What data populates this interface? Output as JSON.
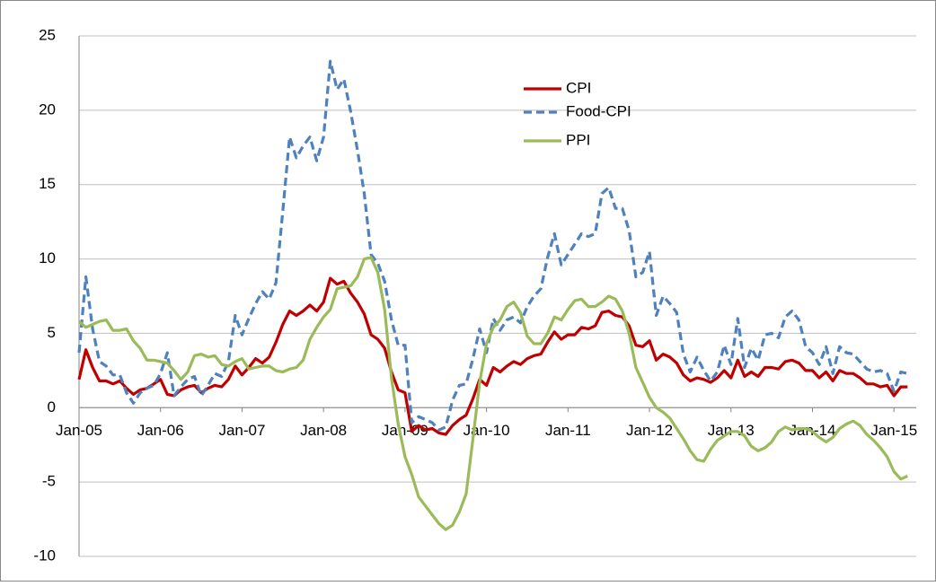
{
  "chart_data": {
    "type": "line",
    "categories": [
      "Jan-05",
      null,
      null,
      null,
      null,
      null,
      null,
      null,
      null,
      null,
      null,
      null,
      "Jan-06",
      null,
      null,
      null,
      null,
      null,
      null,
      null,
      null,
      null,
      null,
      null,
      "Jan-07",
      null,
      null,
      null,
      null,
      null,
      null,
      null,
      null,
      null,
      null,
      null,
      "Jan-08",
      null,
      null,
      null,
      null,
      null,
      null,
      null,
      null,
      null,
      null,
      null,
      "Jan-09",
      null,
      null,
      null,
      null,
      null,
      null,
      null,
      null,
      null,
      null,
      null,
      "Jan-10",
      null,
      null,
      null,
      null,
      null,
      null,
      null,
      null,
      null,
      null,
      null,
      "Jan-11",
      null,
      null,
      null,
      null,
      null,
      null,
      null,
      null,
      null,
      null,
      null,
      "Jan-12",
      null,
      null,
      null,
      null,
      null,
      null,
      null,
      null,
      null,
      null,
      null,
      "Jan-13",
      null,
      null,
      null,
      null,
      null,
      null,
      null,
      null,
      null,
      null,
      null,
      "Jan-14",
      null,
      null,
      null,
      null,
      null,
      null,
      null,
      null,
      null,
      null,
      null,
      "Jan-15",
      null,
      null
    ],
    "series": [
      {
        "name": "CPI",
        "color": "#c00000",
        "dash": false,
        "values": [
          1.9,
          3.9,
          2.7,
          1.8,
          1.8,
          1.6,
          1.8,
          1.3,
          0.9,
          1.2,
          1.3,
          1.6,
          1.9,
          0.9,
          0.8,
          1.2,
          1.4,
          1.5,
          1.0,
          1.3,
          1.5,
          1.4,
          1.9,
          2.8,
          2.2,
          2.7,
          3.3,
          3.0,
          3.4,
          4.4,
          5.6,
          6.5,
          6.2,
          6.5,
          6.9,
          6.5,
          7.1,
          8.7,
          8.3,
          8.5,
          7.7,
          7.1,
          6.3,
          4.9,
          4.6,
          4.0,
          2.4,
          1.2,
          1.0,
          -1.6,
          -1.2,
          -1.5,
          -1.4,
          -1.7,
          -1.8,
          -1.2,
          -0.8,
          -0.5,
          0.6,
          1.9,
          1.5,
          2.7,
          2.4,
          2.8,
          3.1,
          2.9,
          3.3,
          3.5,
          3.6,
          4.4,
          5.1,
          4.6,
          4.9,
          4.9,
          5.4,
          5.3,
          5.5,
          6.4,
          6.5,
          6.2,
          6.1,
          5.5,
          4.2,
          4.1,
          4.5,
          3.2,
          3.6,
          3.4,
          3.0,
          2.2,
          1.8,
          2.0,
          1.9,
          1.7,
          2.0,
          2.5,
          2.0,
          3.2,
          2.1,
          2.4,
          2.1,
          2.7,
          2.7,
          2.6,
          3.1,
          3.2,
          3.0,
          2.5,
          2.5,
          2.0,
          2.4,
          1.8,
          2.5,
          2.3,
          2.3,
          2.0,
          1.6,
          1.6,
          1.4,
          1.5,
          0.8,
          1.4,
          1.4
        ]
      },
      {
        "name": "Food-CPI",
        "color": "#4f81bd",
        "dash": true,
        "values": [
          3.7,
          8.8,
          5.3,
          3.1,
          2.8,
          2.2,
          2.2,
          1.0,
          0.3,
          1.0,
          1.3,
          1.5,
          2.3,
          3.7,
          0.8,
          1.4,
          1.9,
          2.1,
          0.8,
          1.5,
          2.3,
          2.1,
          3.1,
          6.2,
          4.9,
          6.0,
          7.0,
          7.8,
          7.3,
          8.4,
          13.2,
          18.2,
          16.8,
          17.6,
          18.2,
          16.6,
          18.2,
          23.3,
          21.4,
          22.1,
          19.9,
          17.3,
          14.4,
          10.3,
          9.7,
          8.5,
          5.9,
          4.2,
          4.2,
          -1.0,
          -0.6,
          -0.8,
          -1.0,
          -1.5,
          -1.3,
          0.5,
          1.5,
          1.6,
          3.3,
          5.3,
          3.7,
          6.0,
          5.2,
          5.9,
          6.1,
          5.7,
          6.8,
          7.5,
          8.0,
          10.1,
          11.7,
          9.6,
          10.3,
          11.0,
          11.7,
          11.5,
          11.7,
          14.4,
          14.8,
          13.4,
          13.4,
          11.9,
          8.8,
          9.1,
          10.5,
          6.2,
          7.5,
          7.0,
          6.4,
          3.6,
          2.4,
          3.4,
          2.5,
          1.8,
          2.4,
          4.2,
          2.9,
          6.0,
          2.7,
          4.0,
          3.2,
          4.9,
          5.0,
          4.7,
          6.1,
          6.5,
          5.9,
          4.1,
          3.7,
          2.9,
          4.1,
          2.3,
          4.1,
          3.7,
          3.6,
          3.1,
          2.6,
          2.4,
          2.5,
          2.3,
          1.1,
          2.4,
          2.3
        ]
      },
      {
        "name": "PPI",
        "color": "#9bbb59",
        "dash": false,
        "values": [
          5.8,
          5.4,
          5.6,
          5.8,
          5.9,
          5.2,
          5.2,
          5.3,
          4.5,
          4.0,
          3.2,
          3.2,
          3.1,
          3.0,
          2.5,
          1.9,
          2.4,
          3.5,
          3.6,
          3.4,
          3.5,
          2.9,
          2.8,
          3.1,
          3.3,
          2.6,
          2.7,
          2.8,
          2.8,
          2.5,
          2.4,
          2.6,
          2.7,
          3.2,
          4.6,
          5.4,
          6.1,
          6.6,
          8.0,
          8.1,
          8.2,
          8.8,
          10.0,
          10.1,
          9.1,
          6.6,
          2.0,
          -1.1,
          -3.3,
          -4.5,
          -6.0,
          -6.6,
          -7.2,
          -7.8,
          -8.2,
          -7.9,
          -7.0,
          -5.8,
          -2.1,
          1.7,
          4.3,
          5.4,
          5.9,
          6.8,
          7.1,
          6.4,
          4.8,
          4.3,
          4.3,
          5.0,
          6.1,
          5.9,
          6.6,
          7.2,
          7.3,
          6.8,
          6.8,
          7.1,
          7.5,
          7.3,
          6.5,
          5.0,
          2.7,
          1.7,
          0.7,
          0.0,
          -0.3,
          -0.7,
          -1.4,
          -2.1,
          -2.9,
          -3.5,
          -3.6,
          -2.8,
          -2.2,
          -1.9,
          -1.6,
          -1.6,
          -1.9,
          -2.6,
          -2.9,
          -2.7,
          -2.3,
          -1.6,
          -1.3,
          -1.5,
          -1.4,
          -1.4,
          -1.6,
          -2.0,
          -2.3,
          -2.0,
          -1.4,
          -1.1,
          -0.9,
          -1.2,
          -1.8,
          -2.2,
          -2.7,
          -3.3,
          -4.3,
          -4.8,
          -4.6
        ]
      }
    ],
    "ylim": [
      -10,
      25
    ],
    "yticks": [
      -10,
      -5,
      0,
      5,
      10,
      15,
      20,
      25
    ],
    "grid": true,
    "legend": "top-right"
  }
}
